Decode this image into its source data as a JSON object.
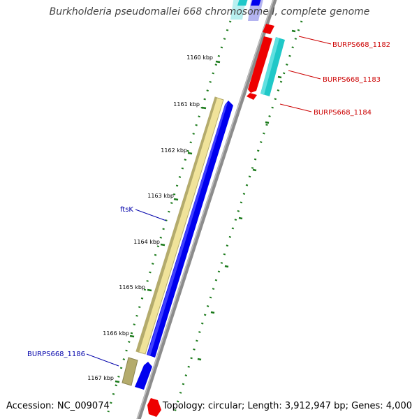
{
  "title": "Burkholderia pseudomallei 668 chromosome I, complete genome",
  "footer": {
    "accession": "Accession: NC_009074",
    "topology": "Topology: circular; Length: 3,912,947 bp; Genes: 4,000"
  },
  "colors": {
    "backbone": "#8c8c8c",
    "tick": "#1a7a1a",
    "forward_gene": "#0000ee",
    "forward_gene_light": "#b4b4f0",
    "forward_cds_shadow": "#f0e39a",
    "forward_cds_shadow_dark": "#b4ab6c",
    "reverse_gene": "#ee0000",
    "reverse_cds": "#20c8c8",
    "reverse_cds_light": "#b8f0f0",
    "label_forward": "#0000aa",
    "label_reverse": "#cc0000"
  },
  "ticks": [
    {
      "label": "1160 kbp"
    },
    {
      "label": "1161 kbp"
    },
    {
      "label": "1162 kbp"
    },
    {
      "label": "1163 kbp"
    },
    {
      "label": "1164 kbp"
    },
    {
      "label": "1165 kbp"
    },
    {
      "label": "1166 kbp"
    },
    {
      "label": "1167 kbp"
    }
  ],
  "gene_labels": {
    "ftsK": "ftsK",
    "burps1186": "BURPS668_1186",
    "burps1182": "BURPS668_1182",
    "burps1183": "BURPS668_1183",
    "burps1184": "BURPS668_1184"
  }
}
